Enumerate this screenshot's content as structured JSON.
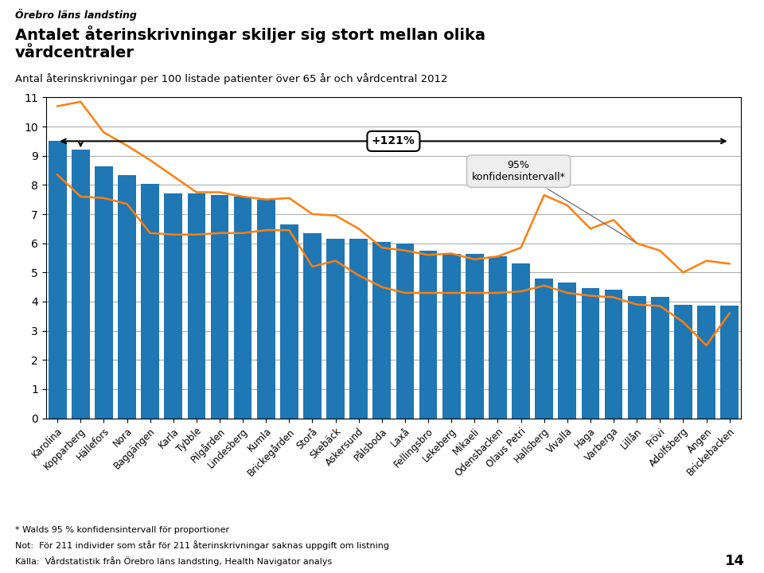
{
  "chart_data": {
    "type": "bar",
    "header": "Örebro läns landsting",
    "title": "Antalet återinskrivningar skiljer sig stort mellan olika\nvårdcentraler",
    "subtitle": "Antal återinskrivningar per 100 listade patienter över 65 år och vårdcentral 2012",
    "categories": [
      "Karolina",
      "Kopparberg",
      "Hällefors",
      "Nora",
      "Baggängen",
      "Karla",
      "Tybble",
      "Pilgården",
      "Lindesberg",
      "Kumla",
      "Brickegården",
      "Storå",
      "Skebäck",
      "Askersund",
      "Pålsboda",
      "Laxå",
      "Fellingsbro",
      "Lekeberg",
      "Mikaeli",
      "Odensbacken",
      "Olaus Petri",
      "Hallsberg",
      "Vivalla",
      "Haga",
      "Varberga",
      "Lillån",
      "Frövi",
      "Adolfsberg",
      "Ängen",
      "Brickebacken"
    ],
    "values": [
      9.5,
      9.2,
      8.65,
      8.35,
      8.05,
      7.7,
      7.7,
      7.65,
      7.6,
      7.5,
      6.65,
      6.35,
      6.15,
      6.15,
      6.05,
      6.0,
      5.75,
      5.65,
      5.65,
      5.55,
      5.3,
      4.8,
      4.65,
      4.45,
      4.4,
      4.2,
      4.15,
      3.9,
      3.85,
      3.85
    ],
    "ci_upper": [
      10.7,
      10.85,
      9.8,
      9.35,
      8.85,
      8.3,
      7.75,
      7.75,
      7.6,
      7.5,
      7.55,
      7.0,
      6.95,
      6.5,
      5.85,
      5.75,
      5.6,
      5.65,
      5.45,
      5.55,
      5.85,
      7.65,
      7.3,
      6.5,
      6.8,
      6.0,
      5.75,
      5.0,
      5.4,
      5.3
    ],
    "ci_lower": [
      8.35,
      7.6,
      7.55,
      7.35,
      6.35,
      6.3,
      6.3,
      6.35,
      6.35,
      6.45,
      6.45,
      5.2,
      5.4,
      4.9,
      4.5,
      4.3,
      4.3,
      4.3,
      4.3,
      4.3,
      4.35,
      4.55,
      4.3,
      4.2,
      4.15,
      3.9,
      3.85,
      3.3,
      2.5,
      3.6
    ],
    "ylim": [
      0,
      11
    ],
    "yticks": [
      0,
      1,
      2,
      3,
      4,
      5,
      6,
      7,
      8,
      9,
      10,
      11
    ],
    "grid": true,
    "annotations": [
      "+121%",
      "95%\nkonfidensintervall*"
    ],
    "footnotes": [
      "* Walds 95 % konfidensintervall för proportioner",
      "Not:  För 211 individer som står för 211 återinskrivningar saknas uppgift om listning",
      "Källa:  Vårdstatistik från Örebro läns landsting, Health Navigator analys"
    ],
    "page_number": "14"
  }
}
